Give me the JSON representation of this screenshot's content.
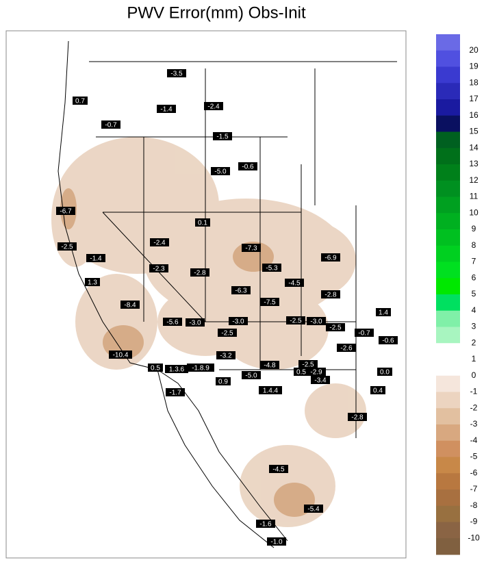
{
  "title": "PWV Error(mm) Obs-Init",
  "stations": [
    "-3.5",
    "0.7",
    "-1.4",
    "-2.4",
    "-0.7",
    "-1.5",
    "-0.6",
    "-5.0",
    "-6.7",
    "0.1",
    "-2.4",
    "-2.5",
    "-7.3",
    "-1.4",
    "-6.9",
    "-5.3",
    "-2.3",
    "-2.8",
    "-4.5",
    "1.3",
    "-6.3",
    "-8.4",
    "-2.8",
    "-7.5",
    "1.4",
    "-5.6",
    "-3.0",
    "-3.0",
    "-2.5",
    "-3.0",
    "-2.5",
    "-0.7",
    "-2.5",
    "-0.6",
    "-2.6",
    "-10.4",
    "-3.2",
    "-4.8",
    "-2.5",
    "0.5",
    "1.3.6",
    "-1.8.9",
    "0.5",
    "-2.9",
    "0.0",
    "-5.0",
    "-3.4",
    "0.9",
    "1.4.4",
    "0.4",
    "-1.7",
    "-2.8",
    "-4.5",
    "-5.4",
    "-1.6",
    "-1.0"
  ],
  "colorbar": {
    "levels": [
      20,
      19,
      18,
      17,
      16,
      15,
      14,
      13,
      12,
      11,
      10,
      9,
      8,
      7,
      6,
      5,
      4,
      3,
      2,
      1,
      0,
      -1,
      -2,
      -3,
      -4,
      -5,
      -6,
      -7,
      -8,
      -9,
      -10
    ],
    "colors": [
      "#6a6ae6",
      "#5050e0",
      "#3a3ad0",
      "#2a2ab8",
      "#1a1aa0",
      "#0a1060",
      "#006020",
      "#00701a",
      "#00801a",
      "#009020",
      "#00a020",
      "#00b020",
      "#00c020",
      "#00d020",
      "#00e020",
      "#00e800",
      "#00e060",
      "#80f0a8",
      "#a8f5c0",
      "#ffffff",
      "#ffffff",
      "#f5e6dc",
      "#ecd4c0",
      "#e2c0a0",
      "#d8a880",
      "#d09060",
      "#c88848",
      "#b87840",
      "#a87040",
      "#987040",
      "#8a6444",
      "#806040"
    ]
  }
}
